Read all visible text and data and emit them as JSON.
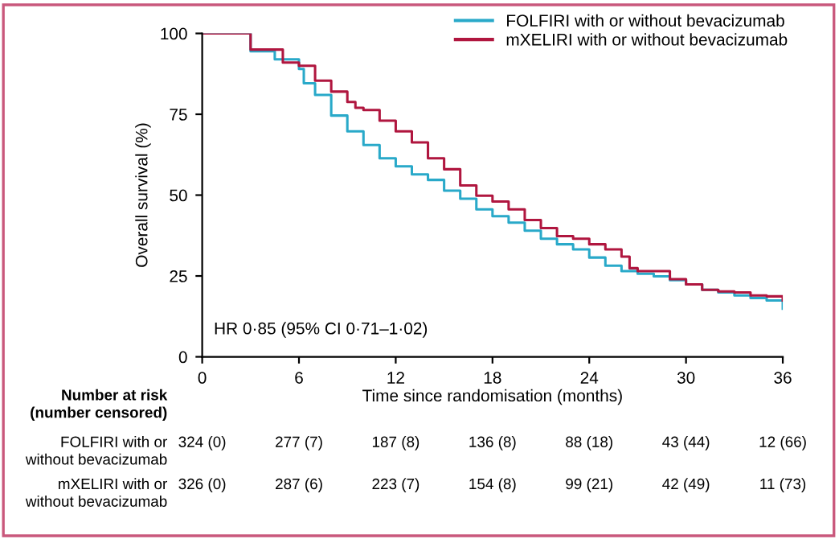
{
  "chart_data": {
    "type": "step",
    "xlabel": "Time since randomisation (months)",
    "ylabel": "Overall survival (%)",
    "xlim": [
      0,
      36
    ],
    "xticks": [
      0,
      6,
      12,
      18,
      24,
      30,
      36
    ],
    "ylim": [
      0,
      100
    ],
    "yticks": [
      0,
      25,
      50,
      75,
      100
    ],
    "grid": false,
    "legend": "top right",
    "series": [
      {
        "name": "FOLFIRI with or without bevacizumab",
        "color": "#29a9c9",
        "x": [
          0,
          3,
          4.5,
          6,
          6.3,
          7,
          8,
          9,
          10,
          11,
          12,
          13,
          14,
          15,
          16,
          17,
          18,
          19,
          20,
          21,
          22,
          23,
          24,
          25,
          26,
          27,
          28,
          29,
          30,
          31,
          32,
          33,
          34,
          35,
          36
        ],
        "values": [
          100,
          94.5,
          92,
          89,
          84.6,
          81,
          74.6,
          69.7,
          65.5,
          61.4,
          58.9,
          56.4,
          54.7,
          51.4,
          48.9,
          45.6,
          43.5,
          41.5,
          39,
          36.5,
          34.8,
          33.2,
          30.7,
          28.2,
          26.5,
          25.7,
          24.9,
          23.7,
          22.4,
          20.7,
          19.9,
          19,
          18.2,
          17.4,
          14.9
        ]
      },
      {
        "name": "mXELIRI with or without bevacizumab",
        "color": "#b0163f",
        "x": [
          0,
          3,
          5,
          6,
          7,
          8,
          9,
          9.5,
          10,
          11,
          12,
          13,
          14,
          15,
          16,
          17,
          18,
          19,
          20,
          21,
          22,
          23,
          24,
          25,
          26,
          26.5,
          27,
          28,
          29,
          30,
          31,
          32,
          33,
          34,
          35,
          36
        ],
        "values": [
          100,
          95,
          91,
          90,
          85.4,
          82,
          78.8,
          77,
          76.3,
          73,
          69.7,
          66.3,
          61.4,
          58,
          53,
          49.8,
          48,
          45.6,
          42.3,
          39.8,
          37.3,
          36.5,
          34.8,
          33.2,
          31,
          27.4,
          26.5,
          26.5,
          24,
          22.4,
          20.7,
          20.2,
          19.9,
          19,
          18.7,
          17.4
        ]
      }
    ],
    "annotations": [
      "HR 0·85 (95% CI 0·71–1·02)",
      "Number at risk\n(number censored)",
      "FOLFIRI with or\nwithout bevacizumab",
      "324 (0)",
      "277 (7)",
      "187 (8)",
      "136 (8)",
      "88 (18)",
      "43 (44)",
      "12 (66)",
      "mXELIRI with or\nwithout bevacizumab",
      "326 (0)",
      "287 (6)",
      "223 (7)",
      "154 (8)",
      "99 (21)",
      "42 (49)",
      "11 (73)"
    ]
  }
}
